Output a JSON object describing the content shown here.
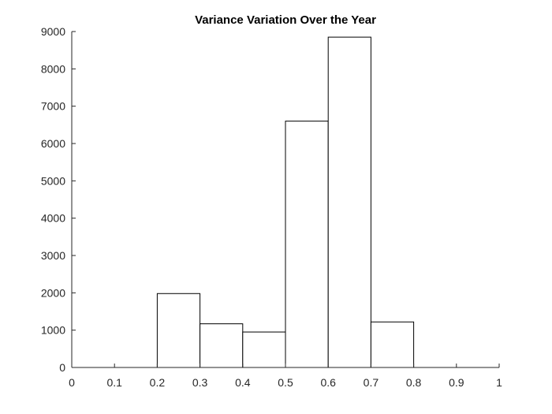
{
  "chart_data": {
    "type": "bar",
    "title": "Variance Variation Over the Year",
    "xlabel": "",
    "ylabel": "",
    "bin_edges": [
      0,
      0.1,
      0.2,
      0.3,
      0.4,
      0.5,
      0.6,
      0.7,
      0.8,
      0.9,
      1
    ],
    "values": [
      0,
      0,
      1980,
      1170,
      950,
      6600,
      8850,
      1220,
      0,
      0
    ],
    "xlim": [
      0,
      1
    ],
    "ylim": [
      0,
      9000
    ],
    "xticks": [
      0,
      0.1,
      0.2,
      0.3,
      0.4,
      0.5,
      0.6,
      0.7,
      0.8,
      0.9,
      1
    ],
    "xtick_labels": [
      "0",
      "0.1",
      "0.2",
      "0.3",
      "0.4",
      "0.5",
      "0.6",
      "0.7",
      "0.8",
      "0.9",
      "1"
    ],
    "yticks": [
      0,
      1000,
      2000,
      3000,
      4000,
      5000,
      6000,
      7000,
      8000,
      9000
    ],
    "ytick_labels": [
      "0",
      "1000",
      "2000",
      "3000",
      "4000",
      "5000",
      "6000",
      "7000",
      "8000",
      "9000"
    ],
    "grid": false,
    "legend": "none",
    "colors": {
      "face": "#ffffff",
      "edge": "#000000",
      "axis": "#262626"
    }
  }
}
